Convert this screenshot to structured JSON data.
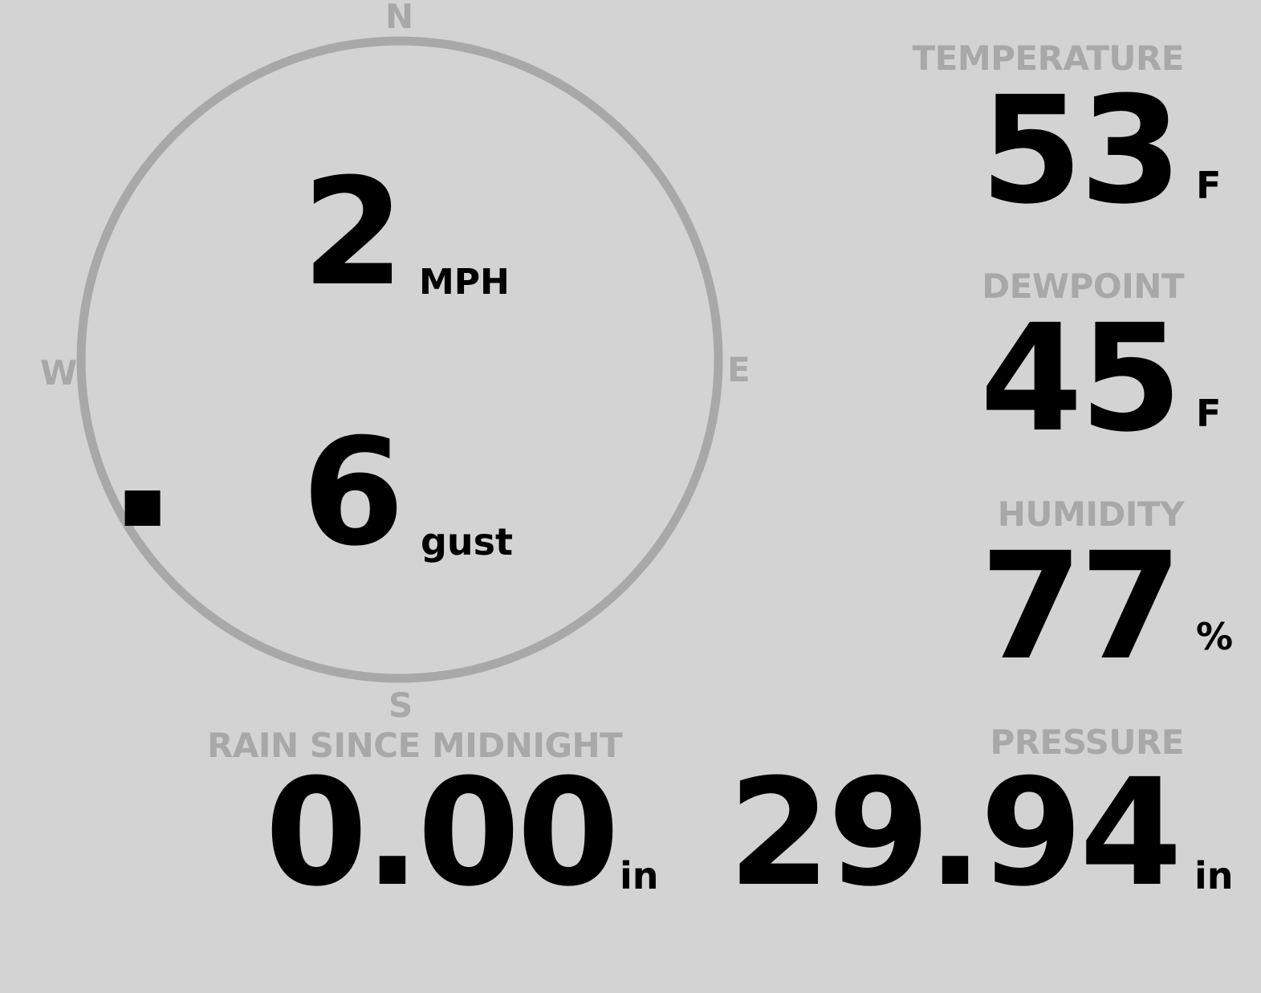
{
  "colors": {
    "background": "#d3d3d3",
    "label": "#a8a8a8",
    "value": "#000000"
  },
  "wind": {
    "compass": {
      "north": "N",
      "east": "E",
      "south": "S",
      "west": "W"
    },
    "speed": "2",
    "speed_unit": "MPH",
    "gust": "6",
    "gust_unit": "gust",
    "direction_degrees": 240
  },
  "rain": {
    "label": "RAIN SINCE MIDNIGHT",
    "value": "0.00",
    "unit": "in"
  },
  "temperature": {
    "label": "TEMPERATURE",
    "value": "53",
    "unit": "F"
  },
  "dewpoint": {
    "label": "DEWPOINT",
    "value": "45",
    "unit": "F"
  },
  "humidity": {
    "label": "HUMIDITY",
    "value": "77",
    "unit": "%"
  },
  "pressure": {
    "label": "PRESSURE",
    "value": "29.94",
    "unit": "in"
  }
}
